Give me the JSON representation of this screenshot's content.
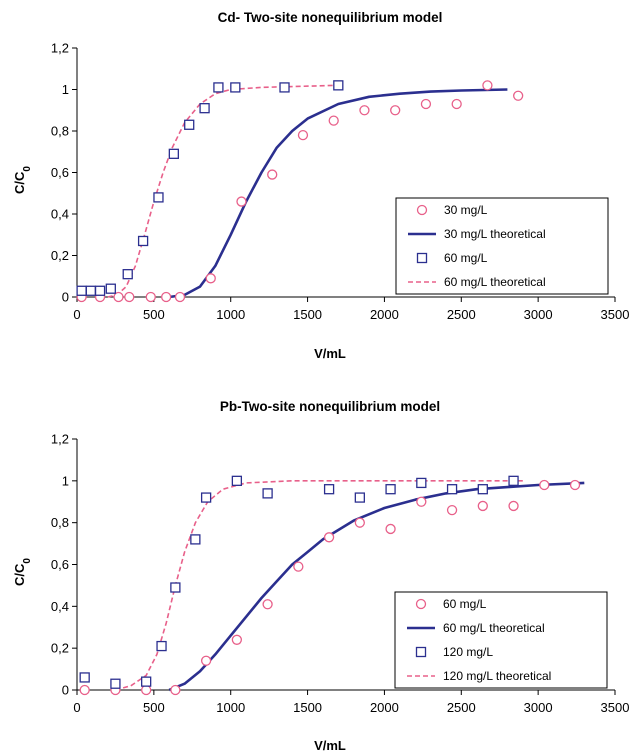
{
  "chart_data": [
    {
      "type": "scatter",
      "title": "Cd- Two-site nonequilibrium model",
      "xlabel": "V/mL",
      "ylabel": "C/C",
      "ylabel_subscript": "0",
      "xlim": [
        0,
        3500
      ],
      "ylim": [
        0,
        1.2
      ],
      "xticks": [
        "0",
        "500",
        "1000",
        "1500",
        "2000",
        "2500",
        "3000",
        "3500"
      ],
      "yticks": [
        "0",
        "0,2",
        "0,4",
        "0,6",
        "0,8",
        "1",
        "1,2"
      ],
      "grid": false,
      "legend_position": "bottom-right",
      "series": [
        {
          "name": "30 mg/L",
          "kind": "marker",
          "marker": "circle",
          "color": "#e8608a",
          "points": [
            [
              30,
              0
            ],
            [
              150,
              0
            ],
            [
              270,
              0
            ],
            [
              340,
              0
            ],
            [
              480,
              0
            ],
            [
              580,
              0
            ],
            [
              670,
              0
            ],
            [
              870,
              0.09
            ],
            [
              1070,
              0.46
            ],
            [
              1270,
              0.59
            ],
            [
              1470,
              0.78
            ],
            [
              1670,
              0.85
            ],
            [
              1870,
              0.9
            ],
            [
              2070,
              0.9
            ],
            [
              2270,
              0.93
            ],
            [
              2470,
              0.93
            ],
            [
              2670,
              1.02
            ],
            [
              2870,
              0.97
            ]
          ]
        },
        {
          "name": "30 mg/L theoretical",
          "kind": "line",
          "style": "solid",
          "color": "#2b2f8f",
          "points": [
            [
              600,
              0
            ],
            [
              700,
              0.01
            ],
            [
              800,
              0.05
            ],
            [
              900,
              0.15
            ],
            [
              1000,
              0.3
            ],
            [
              1100,
              0.46
            ],
            [
              1200,
              0.6
            ],
            [
              1300,
              0.72
            ],
            [
              1400,
              0.8
            ],
            [
              1500,
              0.86
            ],
            [
              1700,
              0.93
            ],
            [
              1900,
              0.965
            ],
            [
              2100,
              0.98
            ],
            [
              2300,
              0.99
            ],
            [
              2500,
              0.995
            ],
            [
              2800,
              1.0
            ]
          ]
        },
        {
          "name": "60 mg/L",
          "kind": "marker",
          "marker": "square",
          "color": "#2b2f8f",
          "points": [
            [
              30,
              0.03
            ],
            [
              90,
              0.03
            ],
            [
              150,
              0.03
            ],
            [
              220,
              0.04
            ],
            [
              330,
              0.11
            ],
            [
              430,
              0.27
            ],
            [
              530,
              0.48
            ],
            [
              630,
              0.69
            ],
            [
              730,
              0.83
            ],
            [
              830,
              0.91
            ],
            [
              920,
              1.01
            ],
            [
              1030,
              1.01
            ],
            [
              1350,
              1.01
            ],
            [
              1700,
              1.02
            ]
          ]
        },
        {
          "name": "60 mg/L theoretical",
          "kind": "line",
          "style": "dashed",
          "color": "#e8608a",
          "points": [
            [
              200,
              0
            ],
            [
              260,
              0.01
            ],
            [
              320,
              0.05
            ],
            [
              380,
              0.15
            ],
            [
              440,
              0.3
            ],
            [
              500,
              0.46
            ],
            [
              560,
              0.6
            ],
            [
              620,
              0.72
            ],
            [
              700,
              0.84
            ],
            [
              800,
              0.93
            ],
            [
              900,
              0.98
            ],
            [
              1000,
              1.0
            ],
            [
              1200,
              1.01
            ],
            [
              1700,
              1.02
            ]
          ]
        }
      ]
    },
    {
      "type": "scatter",
      "title": "Pb-Two-site nonequilibrium model",
      "xlabel": "V/mL",
      "ylabel": "C/C",
      "ylabel_subscript": "0",
      "xlim": [
        0,
        3500
      ],
      "ylim": [
        0,
        1.2
      ],
      "xticks": [
        "0",
        "500",
        "1000",
        "1500",
        "2000",
        "2500",
        "3000",
        "3500"
      ],
      "yticks": [
        "0",
        "0,2",
        "0,4",
        "0,6",
        "0,8",
        "1",
        "1,2"
      ],
      "grid": false,
      "legend_position": "bottom-right",
      "series": [
        {
          "name": "60 mg/L",
          "kind": "marker",
          "marker": "circle",
          "color": "#e8608a",
          "points": [
            [
              50,
              0
            ],
            [
              250,
              0
            ],
            [
              450,
              0
            ],
            [
              640,
              0
            ],
            [
              840,
              0.14
            ],
            [
              1040,
              0.24
            ],
            [
              1240,
              0.41
            ],
            [
              1440,
              0.59
            ],
            [
              1640,
              0.73
            ],
            [
              1840,
              0.8
            ],
            [
              2040,
              0.77
            ],
            [
              2240,
              0.9
            ],
            [
              2440,
              0.86
            ],
            [
              2640,
              0.88
            ],
            [
              2840,
              0.88
            ],
            [
              3040,
              0.98
            ],
            [
              3240,
              0.98
            ]
          ]
        },
        {
          "name": "60 mg/L theoretical",
          "kind": "line",
          "style": "solid",
          "color": "#2b2f8f",
          "points": [
            [
              600,
              0
            ],
            [
              700,
              0.03
            ],
            [
              800,
              0.09
            ],
            [
              900,
              0.17
            ],
            [
              1000,
              0.26
            ],
            [
              1100,
              0.35
            ],
            [
              1200,
              0.44
            ],
            [
              1300,
              0.52
            ],
            [
              1400,
              0.6
            ],
            [
              1500,
              0.66
            ],
            [
              1600,
              0.72
            ],
            [
              1800,
              0.81
            ],
            [
              2000,
              0.87
            ],
            [
              2200,
              0.91
            ],
            [
              2400,
              0.94
            ],
            [
              2600,
              0.96
            ],
            [
              2800,
              0.97
            ],
            [
              3000,
              0.98
            ],
            [
              3300,
              0.99
            ]
          ]
        },
        {
          "name": "120 mg/L",
          "kind": "marker",
          "marker": "square",
          "color": "#2b2f8f",
          "points": [
            [
              50,
              0.06
            ],
            [
              250,
              0.03
            ],
            [
              450,
              0.04
            ],
            [
              550,
              0.21
            ],
            [
              640,
              0.49
            ],
            [
              770,
              0.72
            ],
            [
              840,
              0.92
            ],
            [
              1040,
              1.0
            ],
            [
              1240,
              0.94
            ],
            [
              1640,
              0.96
            ],
            [
              1840,
              0.92
            ],
            [
              2040,
              0.96
            ],
            [
              2240,
              0.99
            ],
            [
              2440,
              0.96
            ],
            [
              2640,
              0.96
            ],
            [
              2840,
              1.0
            ]
          ]
        },
        {
          "name": "120 mg/L theoretical",
          "kind": "line",
          "style": "dashed",
          "color": "#e8608a",
          "points": [
            [
              250,
              0
            ],
            [
              350,
              0.02
            ],
            [
              450,
              0.07
            ],
            [
              520,
              0.17
            ],
            [
              580,
              0.32
            ],
            [
              640,
              0.5
            ],
            [
              700,
              0.66
            ],
            [
              770,
              0.8
            ],
            [
              850,
              0.9
            ],
            [
              950,
              0.96
            ],
            [
              1100,
              0.99
            ],
            [
              1400,
              1.0
            ],
            [
              2000,
              1.0
            ],
            [
              2900,
              1.0
            ]
          ]
        }
      ]
    }
  ]
}
